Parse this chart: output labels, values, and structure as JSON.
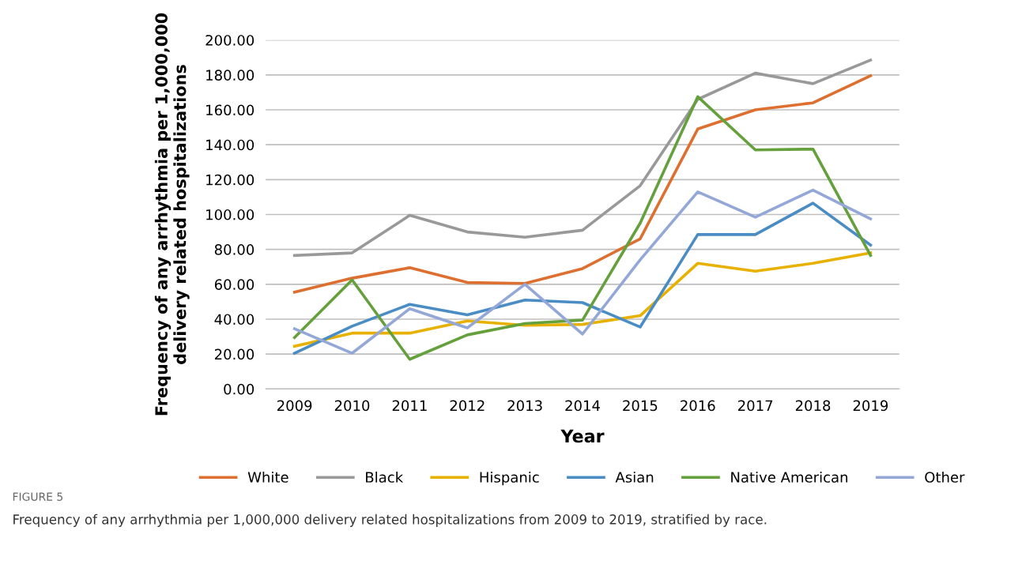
{
  "chart_data": {
    "type": "line",
    "xlabel": "Year",
    "ylabel": "Frequency of any arrhythmia per 1,000,000\ndelivery related hospitalizations",
    "categories": [
      "2009",
      "2010",
      "2011",
      "2012",
      "2013",
      "2014",
      "2015",
      "2016",
      "2017",
      "2018",
      "2019"
    ],
    "series": [
      {
        "name": "White",
        "color": "#dd7030",
        "values": [
          55.5,
          63.5,
          69.5,
          61,
          60.5,
          69,
          86,
          149,
          160,
          164,
          179.5
        ]
      },
      {
        "name": "Black",
        "color": "#999999",
        "values": [
          76.5,
          78,
          99.5,
          90,
          87,
          91,
          116.5,
          166,
          181,
          175,
          188.5
        ]
      },
      {
        "name": "Hispanic",
        "color": "#e8b100",
        "values": [
          24.5,
          32,
          32,
          39,
          36.5,
          37,
          42,
          72,
          67.5,
          72,
          78
        ]
      },
      {
        "name": "Asian",
        "color": "#4a8cc4",
        "values": [
          20.5,
          36,
          48.5,
          42.5,
          51,
          49.5,
          35.5,
          88.5,
          88.5,
          106.5,
          82.5
        ]
      },
      {
        "name": "Native American",
        "color": "#64a03c",
        "values": [
          29.5,
          62.5,
          17,
          31,
          37.5,
          39.5,
          95,
          167.5,
          137,
          137.5,
          76.5
        ]
      },
      {
        "name": "Other",
        "color": "#94a8d8",
        "values": [
          34.5,
          20.5,
          46,
          35,
          60,
          31.5,
          74,
          113,
          98.5,
          114,
          97.5
        ]
      }
    ],
    "ylim": [
      0,
      200
    ],
    "yticks": [
      {
        "value": 0,
        "label": "0.00"
      },
      {
        "value": 20,
        "label": "20.00"
      },
      {
        "value": 40,
        "label": "40.00"
      },
      {
        "value": 60,
        "label": "60.00"
      },
      {
        "value": 80,
        "label": "80.00"
      },
      {
        "value": 100,
        "label": "100.00"
      },
      {
        "value": 120,
        "label": "120.00"
      },
      {
        "value": 140,
        "label": "140.00"
      },
      {
        "value": 160,
        "label": "160.00"
      },
      {
        "value": 180,
        "label": "180.00"
      },
      {
        "value": 200,
        "label": "200.00"
      }
    ],
    "grid": "y",
    "legend": "bottom",
    "marker": "none",
    "line_style": "solid",
    "annotations": [
      "FIGURE 5",
      "Frequency of any arrhythmia per 1,000,000 delivery related hospitalizations from 2009 to 2019, stratified by race."
    ]
  }
}
